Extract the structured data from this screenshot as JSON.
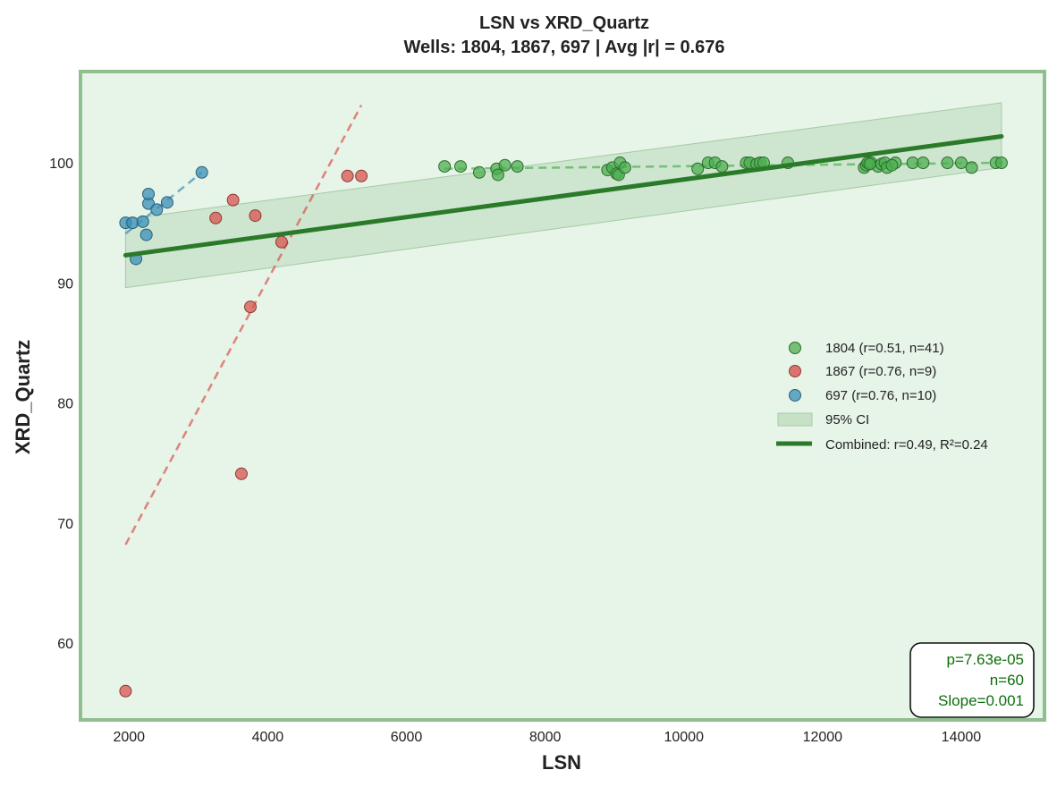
{
  "chart_data": {
    "type": "scatter",
    "title": "LSN vs XRD_Quartz",
    "subtitle": "Wells: 1804, 1867, 697 | Avg |r| = 0.676",
    "xlabel": "LSN",
    "ylabel": "XRD_Quartz",
    "xlim": [
      1300,
      15200
    ],
    "ylim": [
      53.6,
      107.6
    ],
    "xticks": [
      2000,
      4000,
      6000,
      8000,
      10000,
      12000,
      14000
    ],
    "yticks": [
      60,
      70,
      80,
      90,
      100
    ],
    "grid": false,
    "legend_position": "center-right",
    "colors": {
      "background": "#e7f4e8",
      "frame": "#8fbf8f",
      "well_1804": "#4caf50",
      "well_1867": "#d9534f",
      "well_697": "#3a8fb7",
      "combined": "#2a7a2a",
      "ci_fill": "#b9d8b9",
      "stats": "#0b6e0b"
    },
    "series": [
      {
        "name": "1804 (r=0.51, n=41)",
        "color": "#4caf50",
        "points": [
          [
            6550,
            99.7
          ],
          [
            6780,
            99.7
          ],
          [
            7050,
            99.2
          ],
          [
            7300,
            99.5
          ],
          [
            7320,
            99.0
          ],
          [
            7420,
            99.8
          ],
          [
            7600,
            99.7
          ],
          [
            8900,
            99.4
          ],
          [
            8970,
            99.6
          ],
          [
            9030,
            99.1
          ],
          [
            9060,
            99.0
          ],
          [
            9080,
            100.0
          ],
          [
            9150,
            99.6
          ],
          [
            10200,
            99.5
          ],
          [
            10350,
            100.0
          ],
          [
            10450,
            100.0
          ],
          [
            10550,
            99.7
          ],
          [
            10900,
            100.0
          ],
          [
            10950,
            100.0
          ],
          [
            11050,
            99.9
          ],
          [
            11100,
            100.0
          ],
          [
            11150,
            100.0
          ],
          [
            11500,
            100.0
          ],
          [
            12600,
            99.6
          ],
          [
            12630,
            99.8
          ],
          [
            12650,
            100.0
          ],
          [
            12700,
            100.0
          ],
          [
            12800,
            99.7
          ],
          [
            12850,
            99.9
          ],
          [
            12900,
            100.0
          ],
          [
            12930,
            99.6
          ],
          [
            13050,
            100.0
          ],
          [
            13300,
            100.0
          ],
          [
            13450,
            100.0
          ],
          [
            13800,
            100.0
          ],
          [
            14000,
            100.0
          ],
          [
            14150,
            99.6
          ],
          [
            14500,
            100.0
          ],
          [
            14580,
            100.0
          ],
          [
            13000,
            99.8
          ],
          [
            12680,
            99.9
          ]
        ]
      },
      {
        "name": "1867 (r=0.76, n=9)",
        "color": "#d9534f",
        "points": [
          [
            1950,
            56.0
          ],
          [
            3250,
            95.4
          ],
          [
            3500,
            96.9
          ],
          [
            3620,
            74.1
          ],
          [
            3750,
            88.0
          ],
          [
            3820,
            95.6
          ],
          [
            4200,
            93.4
          ],
          [
            5150,
            98.9
          ],
          [
            5350,
            98.9
          ]
        ]
      },
      {
        "name": "697 (r=0.76, n=10)",
        "color": "#3a8fb7",
        "points": [
          [
            1950,
            95.0
          ],
          [
            2050,
            95.0
          ],
          [
            2100,
            92.0
          ],
          [
            2200,
            95.1
          ],
          [
            2250,
            94.0
          ],
          [
            2280,
            96.6
          ],
          [
            2280,
            97.4
          ],
          [
            2400,
            96.1
          ],
          [
            2550,
            96.7
          ],
          [
            3050,
            99.2
          ]
        ]
      }
    ],
    "fits": [
      {
        "series": "1804",
        "x": [
          6550,
          14580
        ],
        "y": [
          99.5,
          100.0
        ],
        "style": "dashed"
      },
      {
        "series": "1867",
        "x": [
          1950,
          5350
        ],
        "y": [
          68.2,
          104.8
        ],
        "style": "dashed"
      },
      {
        "series": "697",
        "x": [
          1950,
          3050
        ],
        "y": [
          94.1,
          99.2
        ],
        "style": "dashed"
      }
    ],
    "combined_fit": {
      "name": "Combined: r=0.49, R²=0.24",
      "x": [
        1950,
        14580
      ],
      "y": [
        92.3,
        102.2
      ]
    },
    "ci": {
      "name": "95% CI",
      "x": [
        1950,
        14580
      ],
      "upper": [
        95.3,
        105.0
      ],
      "lower": [
        89.6,
        99.6
      ]
    },
    "stats": {
      "p": "p=7.63e-05",
      "n": "n=60",
      "slope": "Slope=0.001"
    }
  }
}
